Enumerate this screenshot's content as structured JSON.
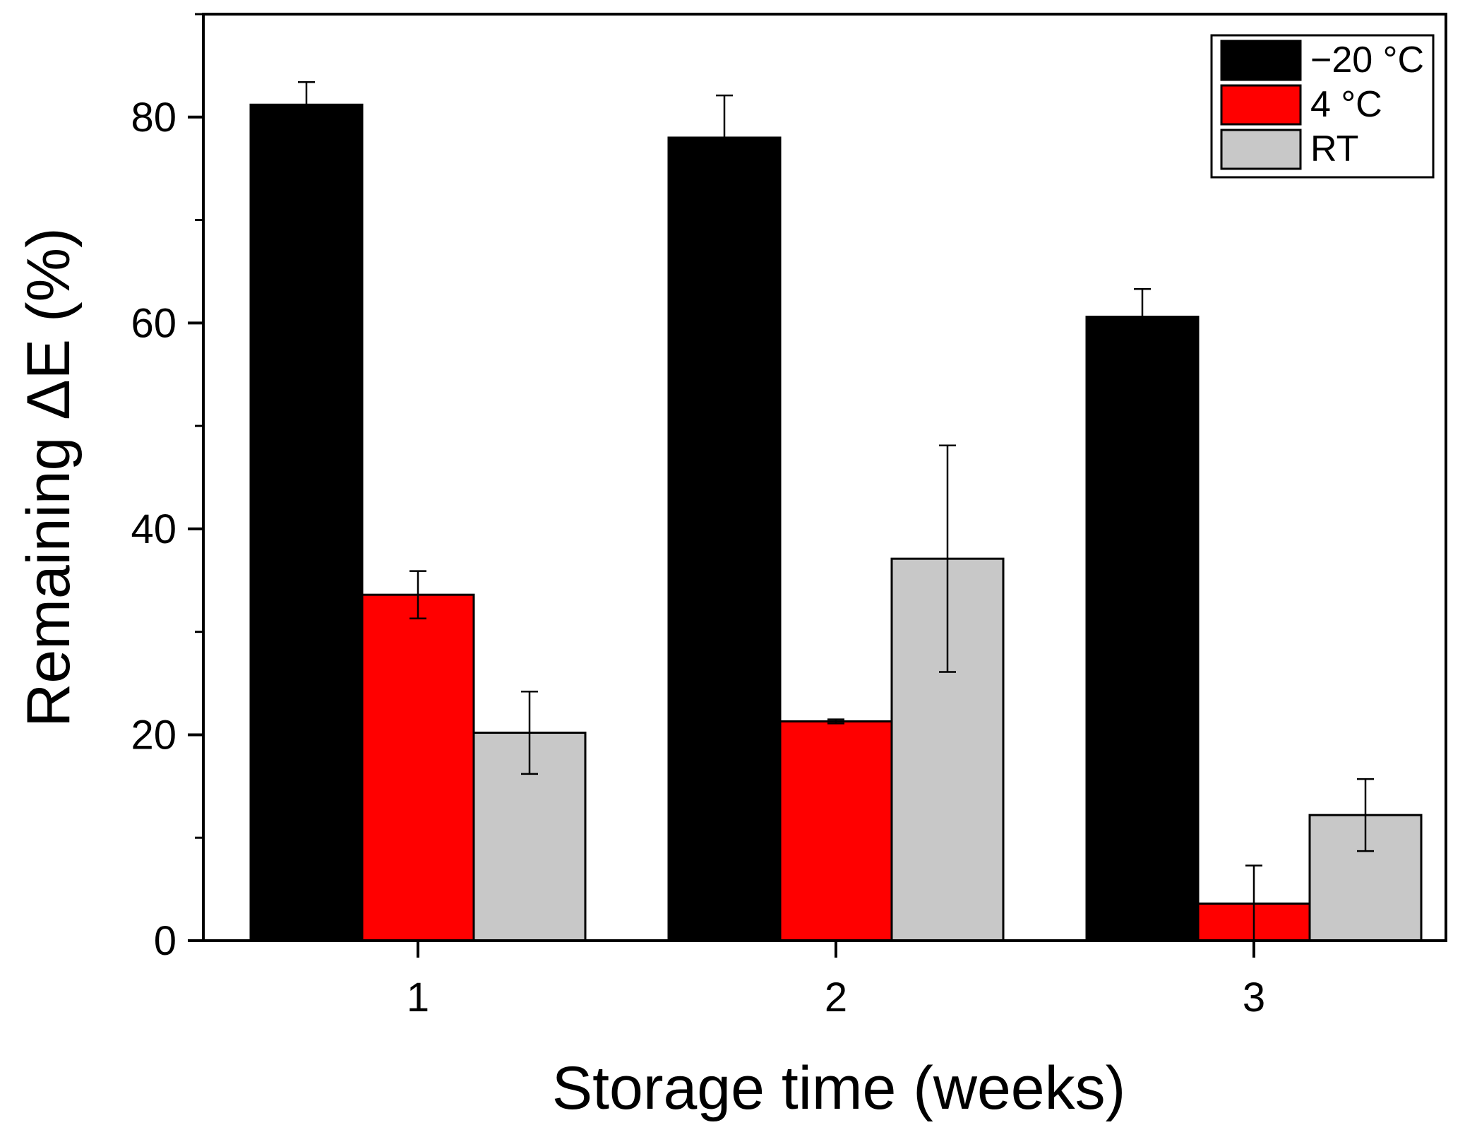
{
  "chart_data": {
    "type": "bar",
    "title": "",
    "xlabel": "Storage time (weeks)",
    "ylabel": "Remaining ΔE (%)",
    "categories": [
      "1",
      "2",
      "3"
    ],
    "ylim": [
      0,
      90
    ],
    "yticks": [
      0,
      20,
      40,
      60,
      80
    ],
    "y_minor_ticks": [
      10,
      30,
      50,
      70,
      90
    ],
    "grid": false,
    "legend_position": "top-right",
    "series": [
      {
        "name": "−20 °C",
        "color": "#000000",
        "values": [
          81.2,
          78.0,
          60.6
        ],
        "errors": [
          2.2,
          4.1,
          2.7
        ]
      },
      {
        "name": "4 °C",
        "color": "#ff0000",
        "values": [
          33.6,
          21.3,
          3.6
        ],
        "errors": [
          2.3,
          0.2,
          3.7
        ]
      },
      {
        "name": "RT",
        "color": "#c8c8c8",
        "values": [
          20.2,
          37.1,
          12.2
        ],
        "errors": [
          4.0,
          11.0,
          3.5
        ]
      }
    ]
  }
}
